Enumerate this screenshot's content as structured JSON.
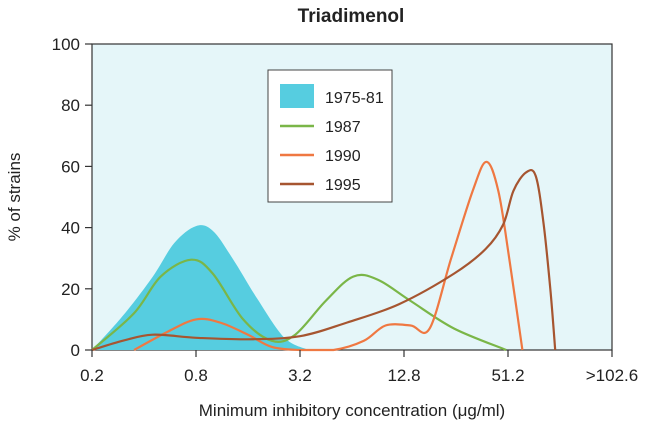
{
  "chart_data": {
    "type": "line",
    "title": "Triadimenol",
    "xlabel": "Minimum inhibitory concentration (μg/ml)",
    "ylabel": "% of strains",
    "x_ticks": [
      "0.2",
      "0.8",
      "3.2",
      "12.8",
      "51.2",
      ">102.6"
    ],
    "y_ticks": [
      0,
      20,
      40,
      60,
      80,
      100
    ],
    "ylim": [
      0,
      100
    ],
    "x_scale": "log2",
    "legend_position": "top-center",
    "background": "#e5f6f9",
    "series": [
      {
        "name": "1975-81",
        "style": "area",
        "color": "#56cde0",
        "points": [
          [
            0.2,
            0
          ],
          [
            0.3,
            11
          ],
          [
            0.45,
            24
          ],
          [
            0.6,
            35
          ],
          [
            0.8,
            40.5
          ],
          [
            1.0,
            39
          ],
          [
            1.3,
            30
          ],
          [
            1.8,
            17
          ],
          [
            2.6,
            4
          ],
          [
            3.6,
            0
          ]
        ]
      },
      {
        "name": "1987",
        "style": "line",
        "color": "#7ab648",
        "points": [
          [
            0.2,
            0
          ],
          [
            0.35,
            12
          ],
          [
            0.5,
            24
          ],
          [
            0.75,
            29.5
          ],
          [
            1.0,
            25
          ],
          [
            1.5,
            10
          ],
          [
            2.2,
            3
          ],
          [
            3.0,
            5
          ],
          [
            4.5,
            16
          ],
          [
            6.5,
            24
          ],
          [
            9,
            23
          ],
          [
            14,
            16
          ],
          [
            25,
            7
          ],
          [
            50,
            0
          ]
        ]
      },
      {
        "name": "1990",
        "style": "line",
        "color": "#ef7842",
        "points": [
          [
            0.35,
            0
          ],
          [
            0.55,
            6
          ],
          [
            0.8,
            10
          ],
          [
            1.1,
            9
          ],
          [
            1.6,
            5
          ],
          [
            2.2,
            1
          ],
          [
            3.2,
            0
          ],
          [
            5,
            0
          ],
          [
            7.5,
            3
          ],
          [
            10,
            8
          ],
          [
            14,
            8
          ],
          [
            18,
            7
          ],
          [
            24,
            30
          ],
          [
            32,
            52
          ],
          [
            38.4,
            61.5
          ],
          [
            45,
            52
          ],
          [
            52,
            30
          ],
          [
            62,
            0
          ]
        ]
      },
      {
        "name": "1995",
        "style": "line",
        "color": "#a65530",
        "points": [
          [
            0.2,
            0
          ],
          [
            0.3,
            3
          ],
          [
            0.45,
            5
          ],
          [
            0.8,
            4
          ],
          [
            1.6,
            3.5
          ],
          [
            3.2,
            4.5
          ],
          [
            6,
            9
          ],
          [
            12,
            15
          ],
          [
            25,
            25
          ],
          [
            38,
            33
          ],
          [
            48,
            41
          ],
          [
            55,
            52
          ],
          [
            65,
            58
          ],
          [
            74,
            57
          ],
          [
            82,
            42
          ],
          [
            90,
            20
          ],
          [
            96,
            0
          ]
        ]
      }
    ]
  }
}
